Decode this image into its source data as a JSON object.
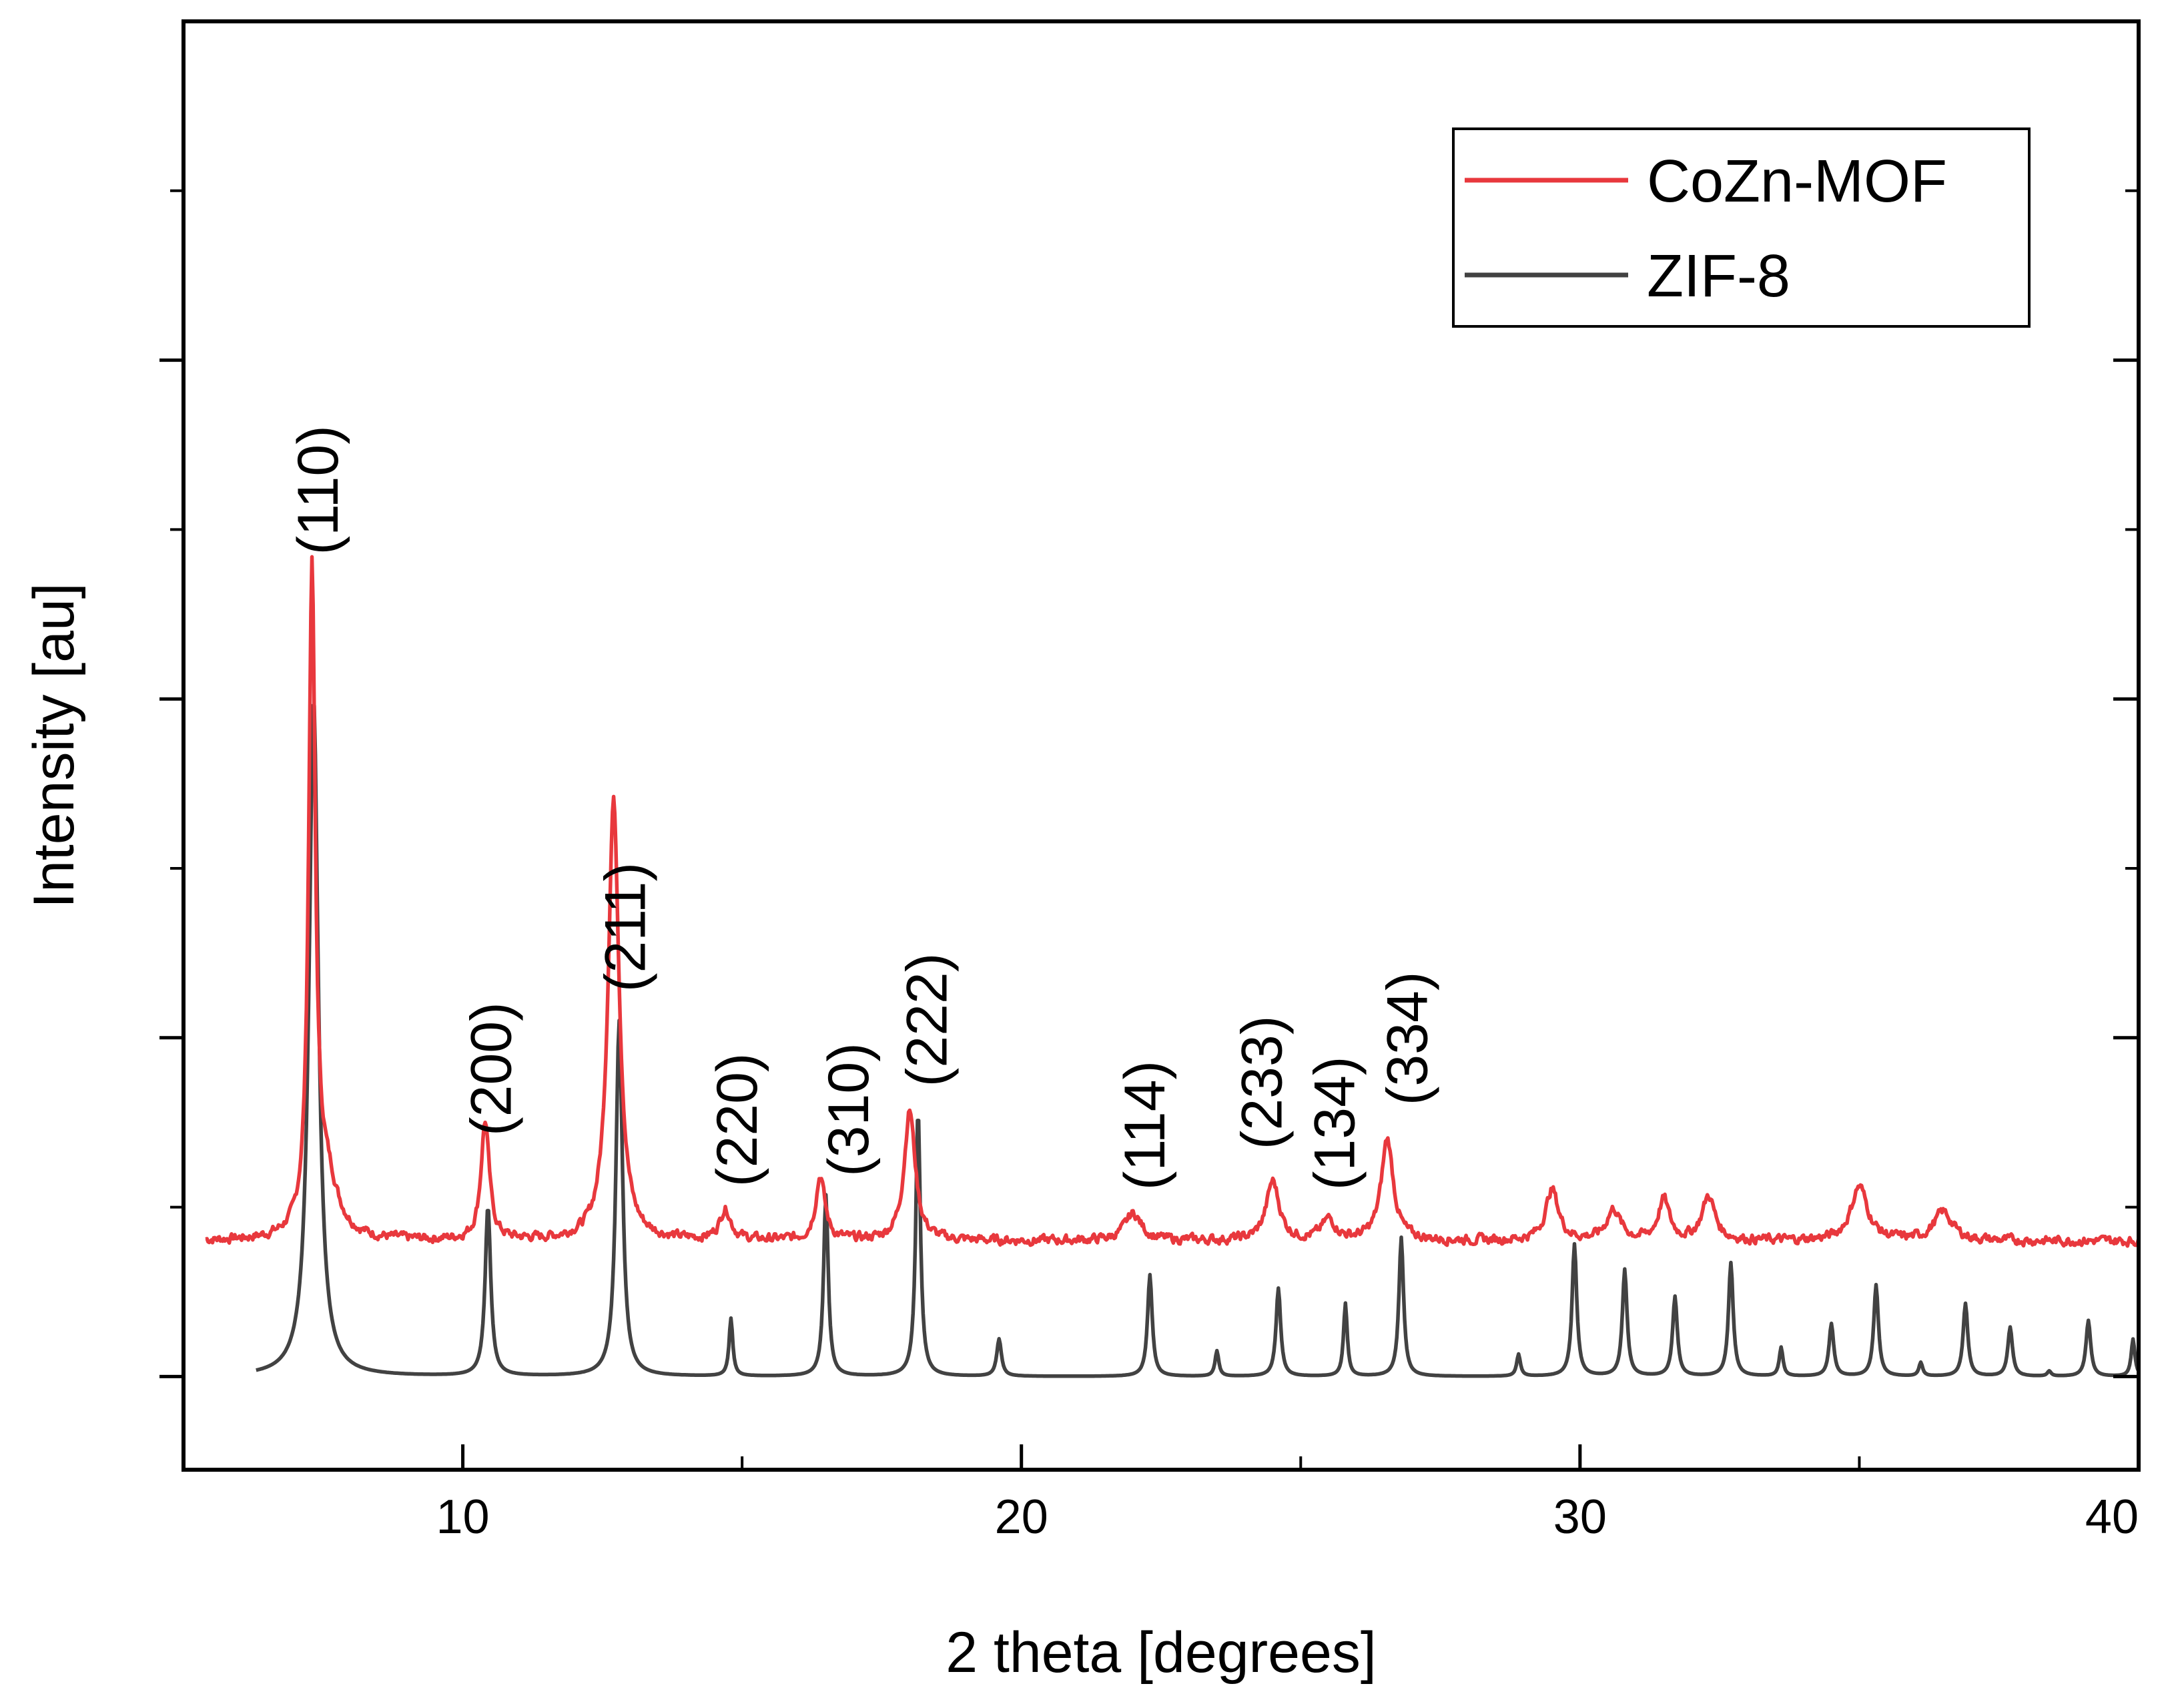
{
  "chart_data": {
    "type": "line",
    "title": "",
    "xlabel": "2 theta [degrees]",
    "ylabel": "Intensity [au]",
    "xlim": [
      5,
      40
    ],
    "ylim": [
      -0.55,
      8.0
    ],
    "x_ticks": [
      10,
      20,
      30,
      40
    ],
    "x_tick_labels": [
      "10",
      "20",
      "30",
      "40"
    ],
    "x_minor_ticks": [
      5,
      15,
      25,
      35
    ],
    "y_major_ticks": [
      0,
      2,
      4,
      6
    ],
    "y_minor_ticks": [
      1,
      3,
      5,
      7
    ],
    "grid": false,
    "legend_position": "top-right",
    "series": [
      {
        "name": "CoZn-MOF",
        "color": "#e8383d",
        "baseline": 0.8,
        "noise": 0.045,
        "seed": 7,
        "peaks": [
          {
            "x": 7.3,
            "h": 3.85,
            "w": 0.07
          },
          {
            "x": 7.55,
            "h": 0.35,
            "w": 0.25
          },
          {
            "x": 10.4,
            "h": 0.7,
            "w": 0.09
          },
          {
            "x": 12.7,
            "h": 2.6,
            "w": 0.12
          },
          {
            "x": 14.7,
            "h": 0.18,
            "w": 0.12
          },
          {
            "x": 16.4,
            "h": 0.38,
            "w": 0.1
          },
          {
            "x": 18.0,
            "h": 0.77,
            "w": 0.12
          },
          {
            "x": 22.0,
            "h": 0.16,
            "w": 0.18
          },
          {
            "x": 24.5,
            "h": 0.35,
            "w": 0.14
          },
          {
            "x": 25.5,
            "h": 0.12,
            "w": 0.15
          },
          {
            "x": 26.55,
            "h": 0.6,
            "w": 0.13
          },
          {
            "x": 29.5,
            "h": 0.3,
            "w": 0.14
          },
          {
            "x": 30.6,
            "h": 0.18,
            "w": 0.15
          },
          {
            "x": 31.5,
            "h": 0.24,
            "w": 0.12
          },
          {
            "x": 32.3,
            "h": 0.26,
            "w": 0.14
          },
          {
            "x": 35.0,
            "h": 0.32,
            "w": 0.18
          },
          {
            "x": 36.5,
            "h": 0.17,
            "w": 0.2
          }
        ]
      },
      {
        "name": "ZIF-8",
        "color": "#424242",
        "baseline": 0.0,
        "noise": 0,
        "peaks": [
          {
            "x": 7.33,
            "h": 4.0,
            "w": 0.1
          },
          {
            "x": 10.45,
            "h": 1.0,
            "w": 0.06
          },
          {
            "x": 12.8,
            "h": 2.1,
            "w": 0.07
          },
          {
            "x": 14.8,
            "h": 0.34,
            "w": 0.04
          },
          {
            "x": 16.5,
            "h": 1.07,
            "w": 0.05
          },
          {
            "x": 18.15,
            "h": 1.57,
            "w": 0.05
          },
          {
            "x": 19.6,
            "h": 0.22,
            "w": 0.05
          },
          {
            "x": 22.3,
            "h": 0.6,
            "w": 0.05
          },
          {
            "x": 23.5,
            "h": 0.15,
            "w": 0.04
          },
          {
            "x": 24.6,
            "h": 0.52,
            "w": 0.05
          },
          {
            "x": 25.8,
            "h": 0.43,
            "w": 0.04
          },
          {
            "x": 26.8,
            "h": 0.82,
            "w": 0.05
          },
          {
            "x": 28.9,
            "h": 0.13,
            "w": 0.04
          },
          {
            "x": 29.9,
            "h": 0.78,
            "w": 0.05
          },
          {
            "x": 30.8,
            "h": 0.63,
            "w": 0.05
          },
          {
            "x": 31.7,
            "h": 0.47,
            "w": 0.05
          },
          {
            "x": 32.7,
            "h": 0.67,
            "w": 0.05
          },
          {
            "x": 33.6,
            "h": 0.17,
            "w": 0.04
          },
          {
            "x": 34.5,
            "h": 0.31,
            "w": 0.05
          },
          {
            "x": 35.3,
            "h": 0.54,
            "w": 0.05
          },
          {
            "x": 36.1,
            "h": 0.08,
            "w": 0.04
          },
          {
            "x": 36.9,
            "h": 0.43,
            "w": 0.05
          },
          {
            "x": 37.7,
            "h": 0.29,
            "w": 0.05
          },
          {
            "x": 38.4,
            "h": 0.03,
            "w": 0.04
          },
          {
            "x": 39.1,
            "h": 0.33,
            "w": 0.05
          },
          {
            "x": 39.9,
            "h": 0.22,
            "w": 0.04
          }
        ]
      }
    ],
    "annotations": [
      {
        "text": "(110)",
        "x": 7.4,
        "y": 4.85
      },
      {
        "text": "(200)",
        "x": 10.5,
        "y": 1.42
      },
      {
        "text": "(211)",
        "x": 12.9,
        "y": 2.27
      },
      {
        "text": "(220)",
        "x": 14.9,
        "y": 1.12
      },
      {
        "text": "(310)",
        "x": 16.9,
        "y": 1.18
      },
      {
        "text": "(222)",
        "x": 18.3,
        "y": 1.71
      },
      {
        "text": "(114)",
        "x": 22.2,
        "y": 1.1
      },
      {
        "text": "(233)",
        "x": 24.3,
        "y": 1.34
      },
      {
        "text": "(134)",
        "x": 25.6,
        "y": 1.1
      },
      {
        "text": "(334)",
        "x": 26.9,
        "y": 1.6
      }
    ]
  }
}
